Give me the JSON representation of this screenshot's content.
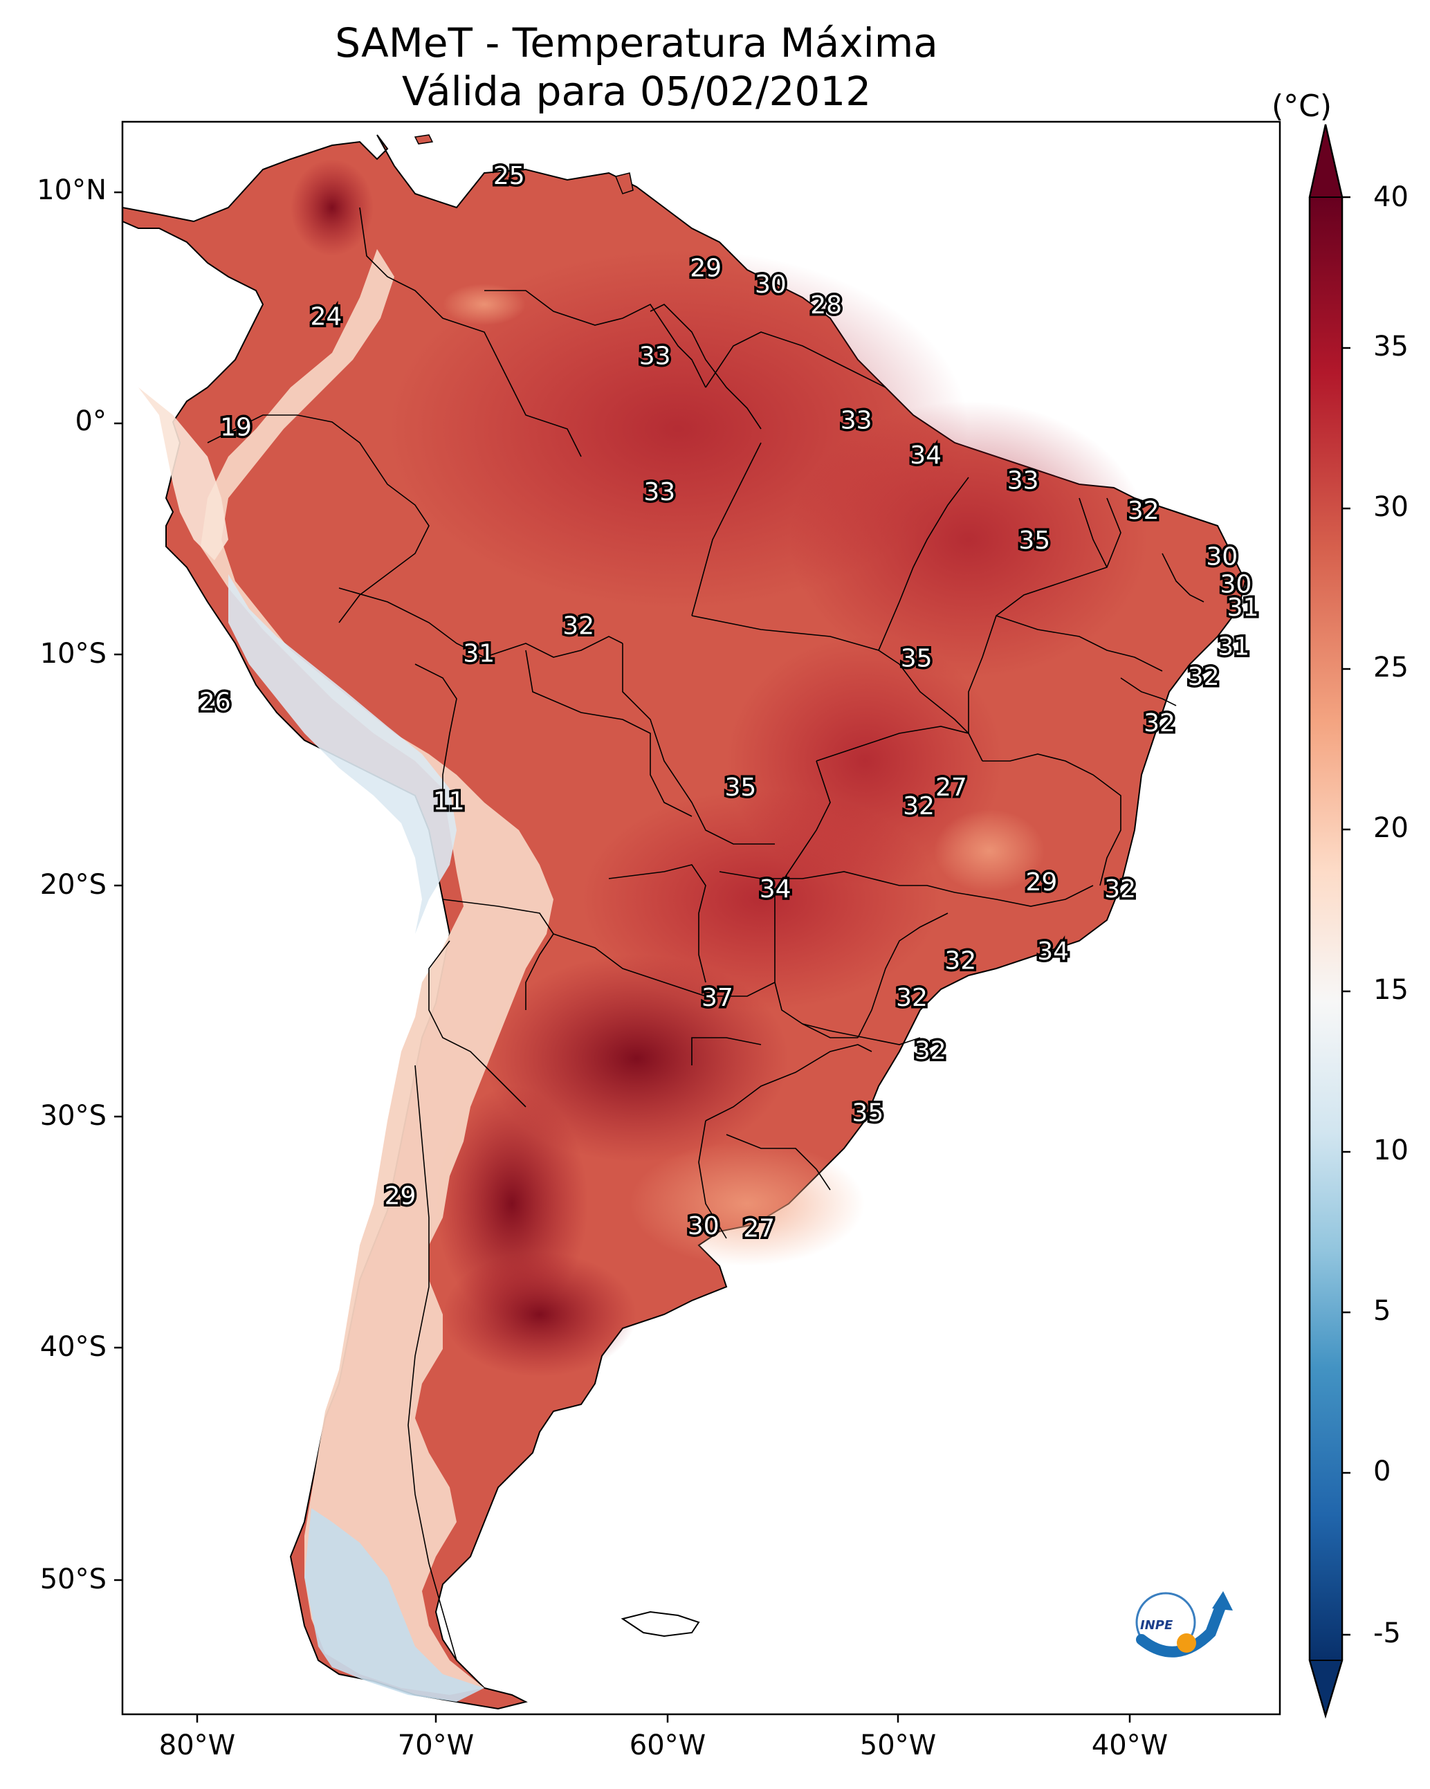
{
  "title": {
    "line1": "SAMeT - Temperatura Máxima",
    "line2": "Válida para 05/02/2012"
  },
  "colorbar": {
    "unit": "(°C)",
    "ticks": [
      "40",
      "35",
      "30",
      "25",
      "20",
      "15",
      "10",
      "5",
      "0",
      "-5"
    ],
    "range": [
      -5,
      40
    ],
    "colors": [
      "#08306b",
      "#2166ac",
      "#4393c3",
      "#92c5de",
      "#d1e5f0",
      "#f7f7f7",
      "#fddbc7",
      "#f4a582",
      "#d6604d",
      "#b2182b",
      "#67001f"
    ]
  },
  "axes": {
    "lat_labels": [
      "10°N",
      "0°",
      "10°S",
      "20°S",
      "30°S",
      "40°S",
      "50°S"
    ],
    "lon_labels": [
      "80°W",
      "70°W",
      "60°W",
      "50°W",
      "40°W"
    ]
  },
  "chart_data": {
    "type": "heatmap",
    "title": "SAMeT - Temperatura Máxima / Válida para 05/02/2012",
    "lon_range": [
      -83,
      -33
    ],
    "lat_range": [
      -56,
      13
    ],
    "contour_labels": [
      {
        "lon": -66.3,
        "lat": 10.6,
        "value": "25"
      },
      {
        "lon": -74.2,
        "lat": 4.5,
        "value": "24"
      },
      {
        "lon": -57.8,
        "lat": 6.6,
        "value": "29"
      },
      {
        "lon": -55.0,
        "lat": 5.9,
        "value": "30"
      },
      {
        "lon": -52.6,
        "lat": 5.0,
        "value": "28"
      },
      {
        "lon": -60.0,
        "lat": 2.8,
        "value": "33"
      },
      {
        "lon": -78.1,
        "lat": -0.3,
        "value": "19"
      },
      {
        "lon": -51.3,
        "lat": 0.0,
        "value": "33"
      },
      {
        "lon": -48.3,
        "lat": -1.5,
        "value": "34"
      },
      {
        "lon": -44.1,
        "lat": -2.6,
        "value": "33"
      },
      {
        "lon": -59.8,
        "lat": -3.1,
        "value": "33"
      },
      {
        "lon": -38.9,
        "lat": -3.9,
        "value": "32"
      },
      {
        "lon": -43.6,
        "lat": -5.2,
        "value": "35"
      },
      {
        "lon": -35.5,
        "lat": -5.9,
        "value": "30"
      },
      {
        "lon": -34.9,
        "lat": -7.1,
        "value": "30"
      },
      {
        "lon": -34.6,
        "lat": -8.1,
        "value": "31"
      },
      {
        "lon": -63.3,
        "lat": -8.9,
        "value": "32"
      },
      {
        "lon": -35.0,
        "lat": -9.8,
        "value": "31"
      },
      {
        "lon": -67.6,
        "lat": -10.1,
        "value": "31"
      },
      {
        "lon": -48.7,
        "lat": -10.3,
        "value": "35"
      },
      {
        "lon": -36.3,
        "lat": -11.1,
        "value": "32"
      },
      {
        "lon": -79.0,
        "lat": -12.2,
        "value": "26"
      },
      {
        "lon": -38.2,
        "lat": -13.1,
        "value": "32"
      },
      {
        "lon": -47.2,
        "lat": -15.9,
        "value": "27"
      },
      {
        "lon": -56.3,
        "lat": -15.9,
        "value": "35"
      },
      {
        "lon": -48.6,
        "lat": -16.7,
        "value": "32"
      },
      {
        "lon": -68.9,
        "lat": -16.5,
        "value": "11"
      },
      {
        "lon": -43.3,
        "lat": -20.0,
        "value": "29"
      },
      {
        "lon": -39.9,
        "lat": -20.3,
        "value": "32"
      },
      {
        "lon": -54.8,
        "lat": -20.3,
        "value": "34"
      },
      {
        "lon": -42.8,
        "lat": -23.0,
        "value": "34"
      },
      {
        "lon": -46.8,
        "lat": -23.4,
        "value": "32"
      },
      {
        "lon": -57.3,
        "lat": -25.0,
        "value": "37"
      },
      {
        "lon": -48.9,
        "lat": -25.0,
        "value": "32"
      },
      {
        "lon": -48.1,
        "lat": -27.3,
        "value": "32"
      },
      {
        "lon": -50.8,
        "lat": -30.0,
        "value": "35"
      },
      {
        "lon": -71.0,
        "lat": -33.6,
        "value": "29"
      },
      {
        "lon": -57.9,
        "lat": -34.9,
        "value": "30"
      },
      {
        "lon": -55.5,
        "lat": -35.0,
        "value": "27"
      }
    ]
  }
}
